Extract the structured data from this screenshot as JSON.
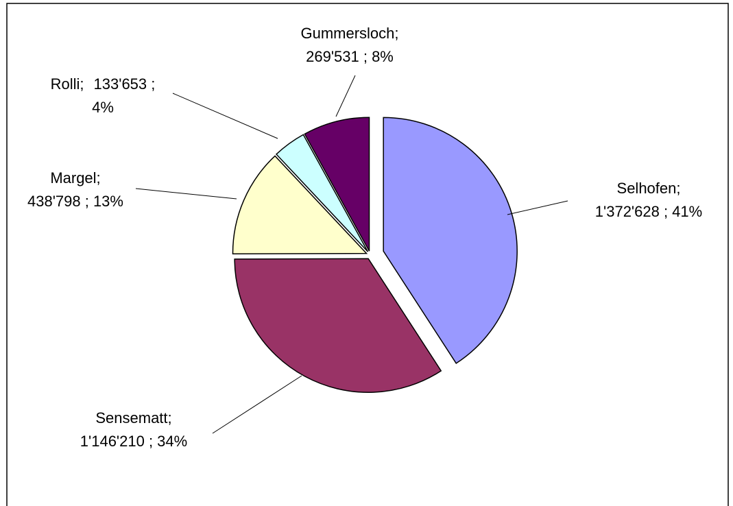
{
  "chart_data": {
    "type": "pie",
    "categories": [
      "Selhofen;",
      "Sensematt;",
      "Margel;",
      "Rolli;",
      "Gummersloch;"
    ],
    "values": [
      1372628,
      1146210,
      438798,
      133653,
      269531
    ],
    "value_labels": [
      [
        "1'372'628 ; 41%"
      ],
      [
        "1'146'210 ; 34%"
      ],
      [
        "438'798 ; 13%"
      ],
      [
        "133'653 ;",
        "4%"
      ],
      [
        "269'531 ; 8%"
      ]
    ],
    "colors": [
      "#9999ff",
      "#993366",
      "#ffffcc",
      "#ccffff",
      "#660066"
    ]
  }
}
